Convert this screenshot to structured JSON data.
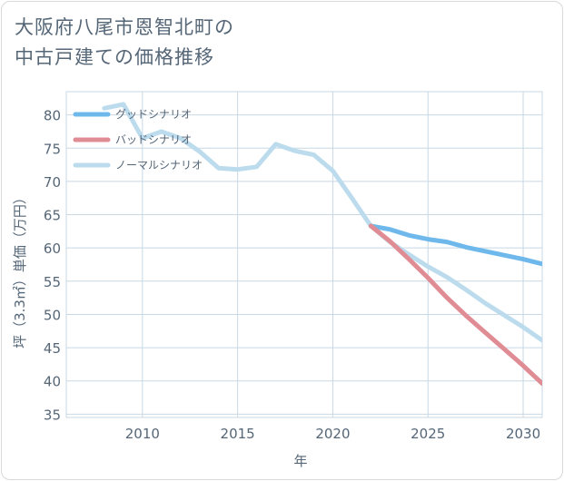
{
  "title": {
    "line1": "大阪府八尾市恩智北町の",
    "line2": "中古戸建ての価格推移"
  },
  "chart_data": {
    "type": "line",
    "xlabel": "年",
    "ylabel": "坪（3.3㎡）単価（万円）",
    "xlim": [
      2006,
      2031
    ],
    "ylim": [
      34.5,
      83.5
    ],
    "xticks": [
      2010,
      2015,
      2020,
      2025,
      2030
    ],
    "yticks": [
      35,
      40,
      45,
      50,
      55,
      60,
      65,
      70,
      75,
      80
    ],
    "grid": true,
    "legend_position": "top-left",
    "series": [
      {
        "name": "グッドシナリオ",
        "color": "#6fb8ec",
        "x": [
          2022,
          2023,
          2024,
          2025,
          2026,
          2027,
          2028,
          2029,
          2030,
          2031
        ],
        "y": [
          63.3,
          62.8,
          61.9,
          61.3,
          60.9,
          60.1,
          59.5,
          58.9,
          58.3,
          57.6
        ]
      },
      {
        "name": "バッドシナリオ",
        "color": "#e08c94",
        "x": [
          2022,
          2023,
          2024,
          2025,
          2026,
          2027,
          2028,
          2029,
          2030,
          2031
        ],
        "y": [
          63.3,
          61.0,
          58.3,
          55.5,
          52.5,
          49.8,
          47.3,
          44.8,
          42.3,
          39.6
        ]
      },
      {
        "name": "ノーマルシナリオ",
        "color": "#bcdcee",
        "x": [
          2008,
          2009,
          2010,
          2011,
          2012,
          2013,
          2014,
          2015,
          2016,
          2017,
          2018,
          2019,
          2020,
          2021,
          2022,
          2023,
          2024,
          2025,
          2026,
          2027,
          2028,
          2029,
          2030,
          2031
        ],
        "y": [
          81.0,
          81.6,
          76.5,
          77.5,
          76.5,
          74.5,
          72.0,
          71.8,
          72.2,
          75.6,
          74.6,
          74.0,
          71.6,
          67.5,
          63.3,
          60.9,
          59.0,
          57.2,
          55.6,
          53.7,
          51.7,
          49.9,
          48.1,
          46.1
        ]
      }
    ]
  }
}
